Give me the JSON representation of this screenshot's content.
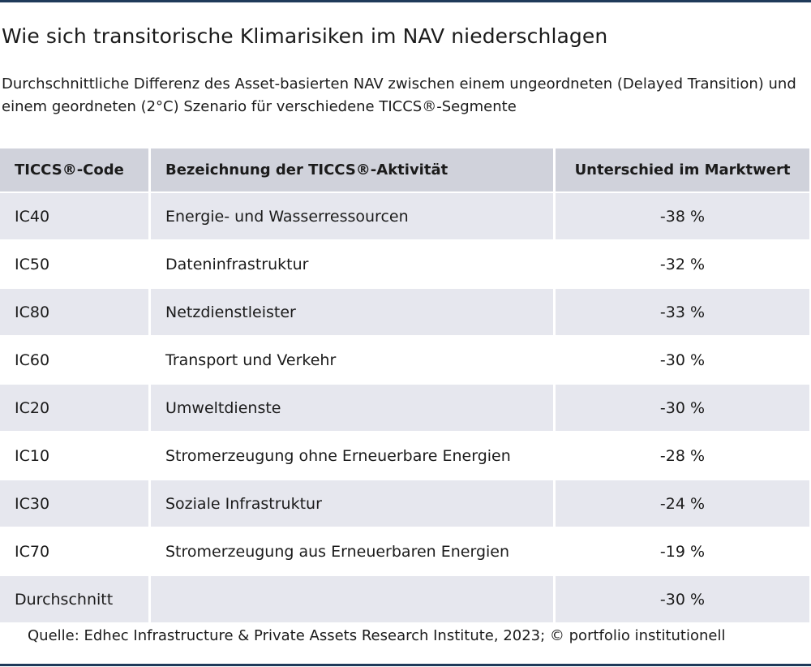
{
  "title": "Wie sich transitorische Klimarisiken im NAV niederschlagen",
  "subtitle": "Durchschnittliche Differenz des Asset-basierten NAV zwischen einem ungeordneten (Delayed Transition) und einem geordneten (2°C) Szenario für verschiedene TICCS®-Segmente",
  "source": "Quelle: Edhec Infrastructure & Private Assets Research Institute, 2023; © portfolio institutionell",
  "colors": {
    "rule": "#1f3a5a",
    "header_bg": "#d0d2db",
    "shaded_row": "#e6e7ee"
  },
  "chart_data": {
    "type": "table",
    "columns": [
      "TICCS®-Code",
      "Bezeichnung der TICCS®-Aktivität",
      "Unterschied im Marktwert"
    ],
    "rows": [
      {
        "code": "IC40",
        "name": "Energie- und Wasserressourcen",
        "value": "-38 %"
      },
      {
        "code": "IC50",
        "name": "Dateninfrastruktur",
        "value": "-32 %"
      },
      {
        "code": "IC80",
        "name": "Netzdienstleister",
        "value": "-33 %"
      },
      {
        "code": "IC60",
        "name": "Transport und Verkehr",
        "value": "-30 %"
      },
      {
        "code": "IC20",
        "name": "Umweltdienste",
        "value": "-30 %"
      },
      {
        "code": "IC10",
        "name": "Stromerzeugung ohne Erneuerbare Energien",
        "value": "-28 %"
      },
      {
        "code": "IC30",
        "name": "Soziale Infrastruktur",
        "value": "-24 %"
      },
      {
        "code": "IC70",
        "name": "Stromerzeugung aus Erneuerbaren Energien",
        "value": "-19 %"
      },
      {
        "code": "Durchschnitt",
        "name": "",
        "value": "-30 %"
      }
    ]
  }
}
